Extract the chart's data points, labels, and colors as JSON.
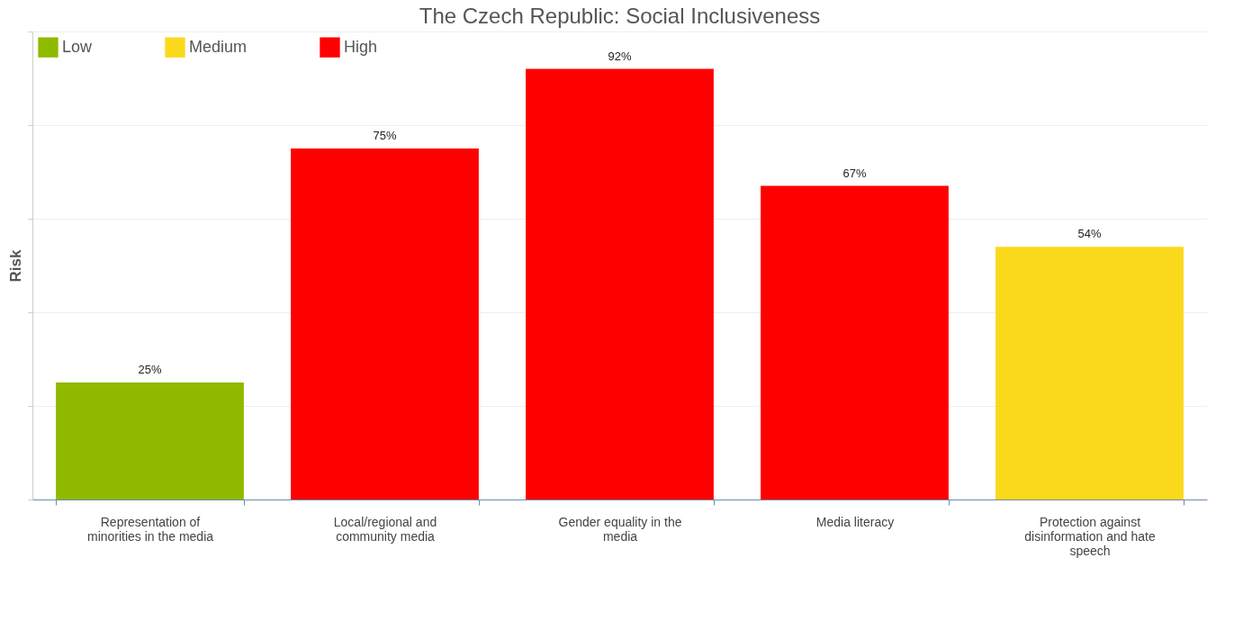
{
  "chart_data": {
    "type": "bar",
    "title": "The Czech Republic: Social Inclusiveness",
    "ylabel": "Risk",
    "categories": [
      "Representation of minorities in the media",
      "Local/regional and community media",
      "Gender equality in the media",
      "Media literacy",
      "Protection against disinformation and hate speech"
    ],
    "series": [
      {
        "name": "Low",
        "color": "#8fba00",
        "values": [
          25,
          null,
          null,
          null,
          null
        ],
        "value_labels": [
          "25%",
          null,
          null,
          null,
          null
        ]
      },
      {
        "name": "Medium",
        "color": "#fad91c",
        "values": [
          null,
          null,
          null,
          null,
          54
        ],
        "value_labels": [
          null,
          null,
          null,
          null,
          "54%"
        ]
      },
      {
        "name": "High",
        "color": "#ff0000",
        "values": [
          null,
          75,
          92,
          67,
          null
        ],
        "value_labels": [
          null,
          "75%",
          "92%",
          "67%",
          null
        ]
      }
    ],
    "ylim": [
      0,
      100
    ],
    "yticks": [
      {
        "value": 0,
        "label": null
      },
      {
        "value": 20,
        "label": null
      },
      {
        "value": 40,
        "label": null
      },
      {
        "value": 60,
        "label": null
      },
      {
        "value": 80,
        "label": null
      },
      {
        "value": 100,
        "label": null
      }
    ],
    "tick_labels": "x",
    "grid": "y",
    "legend": "top left"
  }
}
